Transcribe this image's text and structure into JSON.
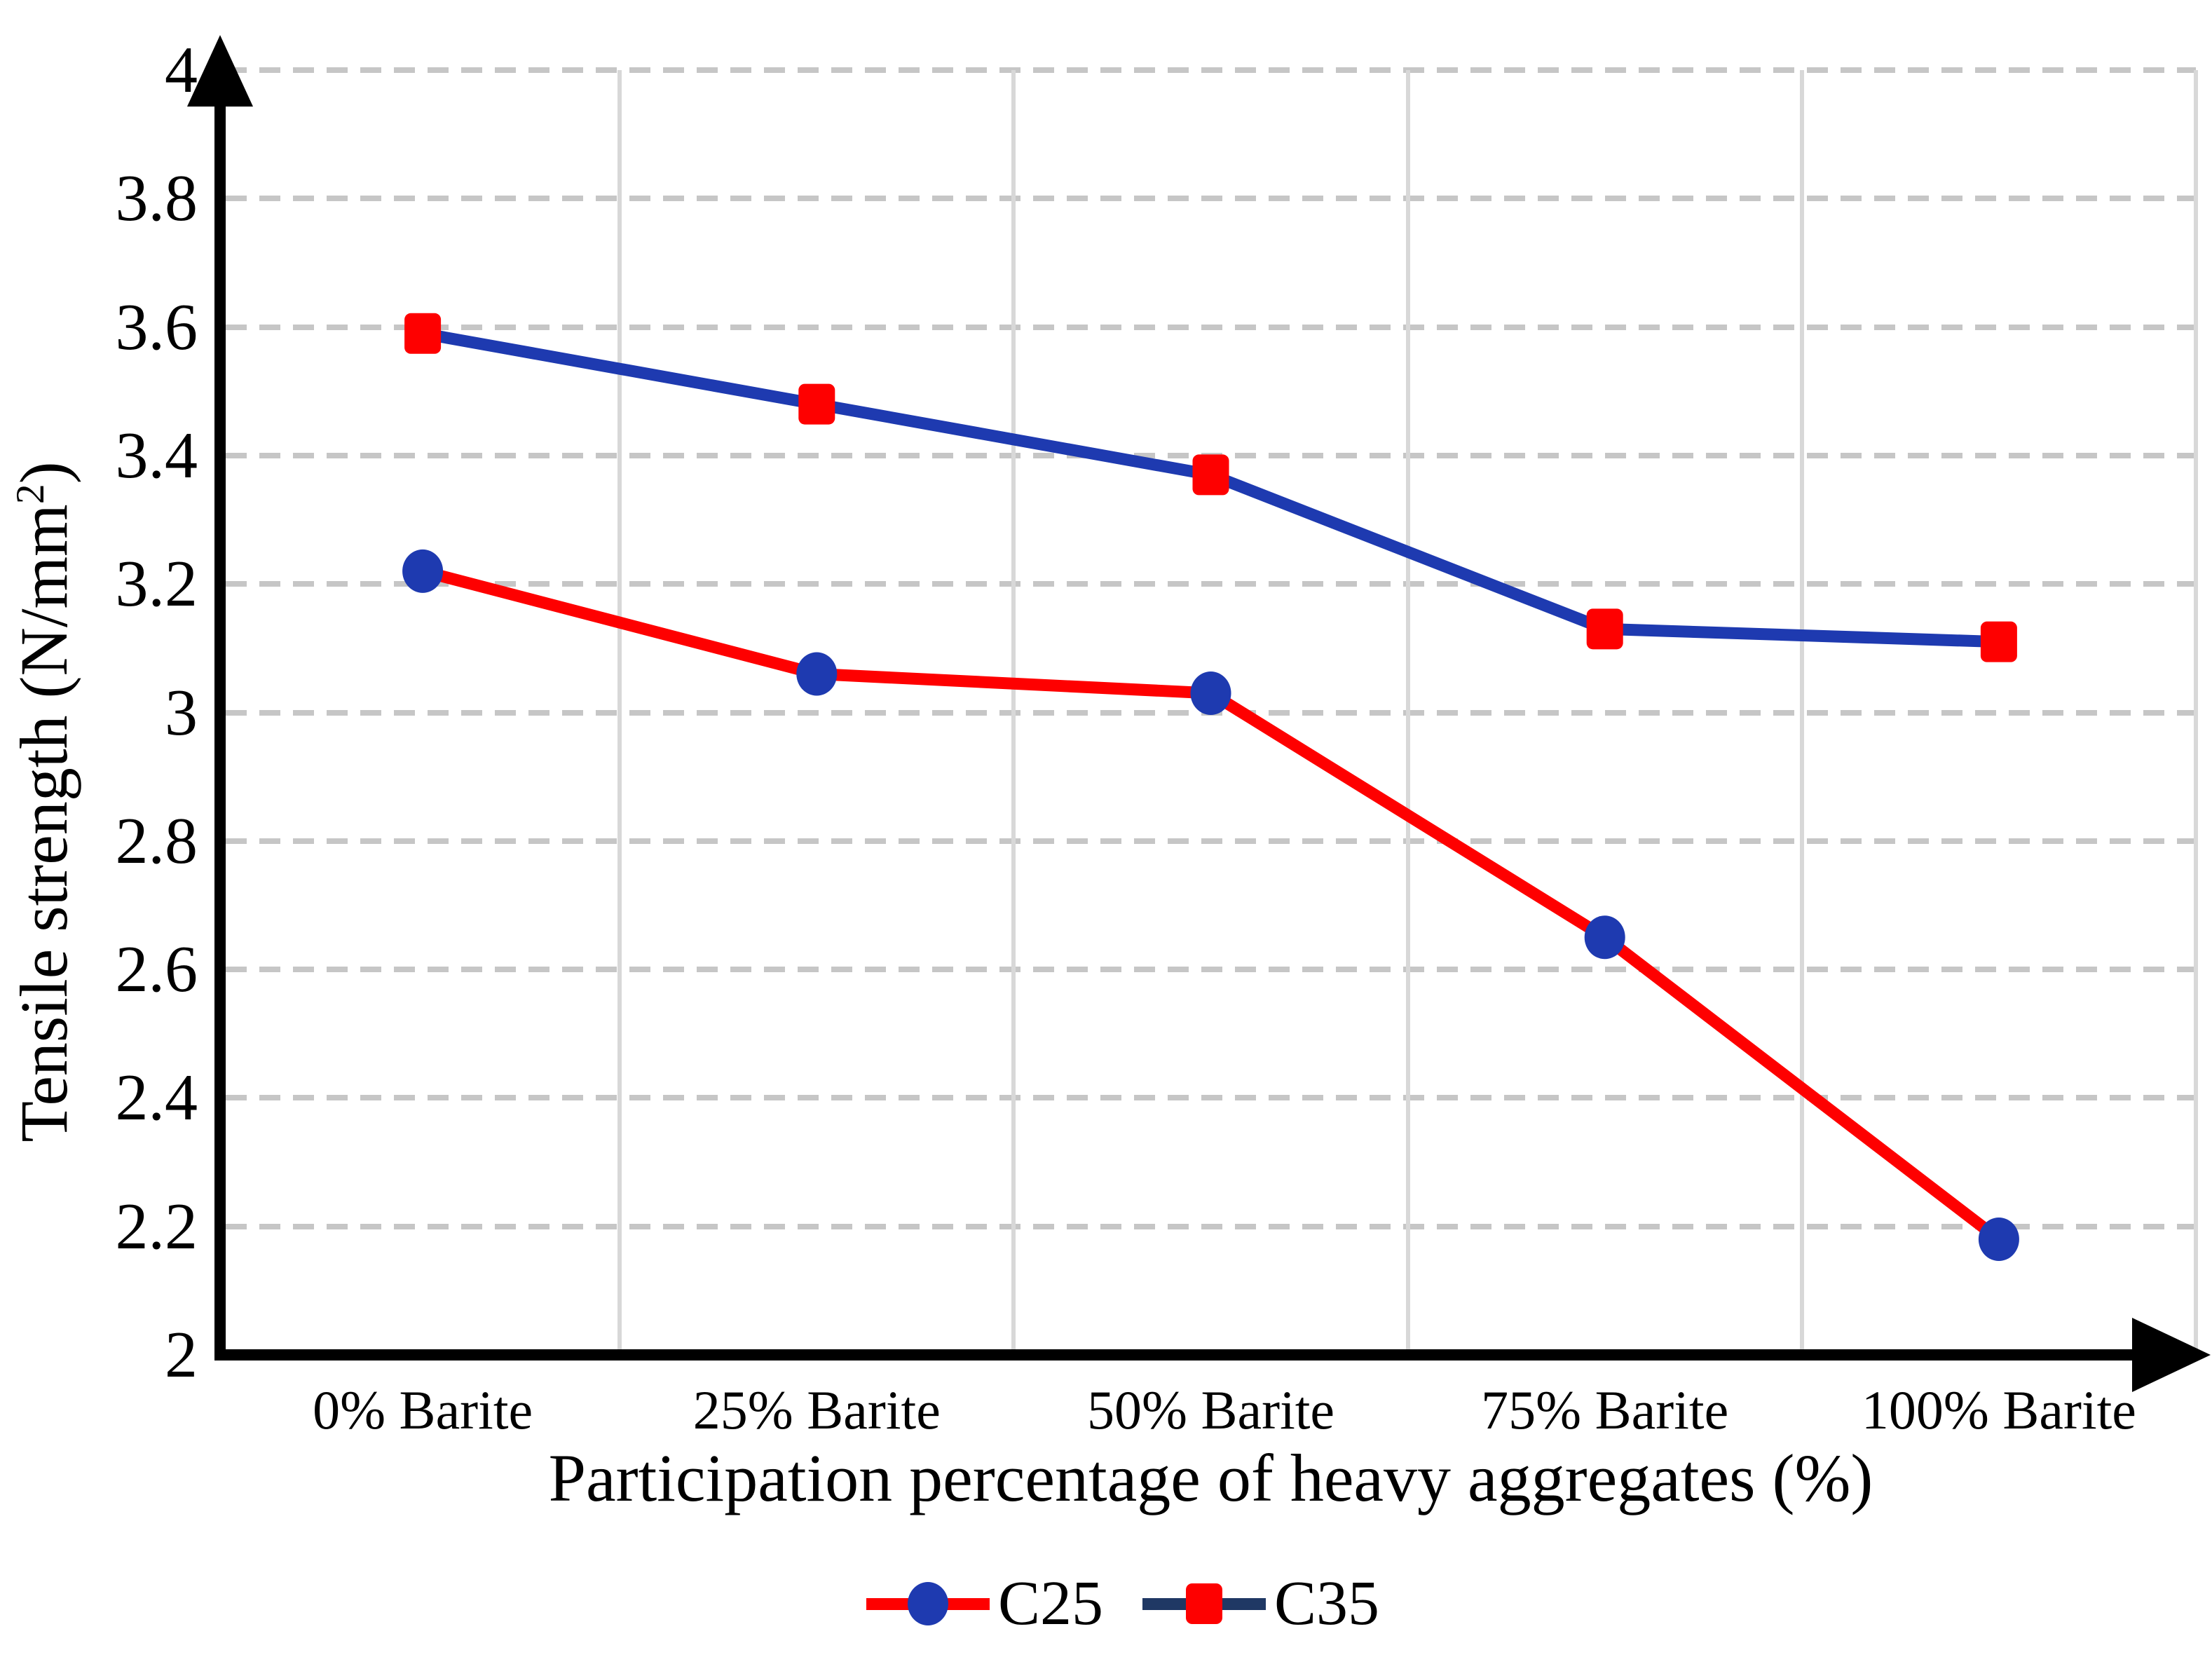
{
  "chart_data": {
    "type": "line",
    "title": "",
    "categories": [
      "0% Barite",
      "25% Barite",
      "50% Barite",
      "75% Barite",
      "100% Barite"
    ],
    "series": [
      {
        "name": "C25",
        "values": [
          3.22,
          3.06,
          3.03,
          2.65,
          2.18
        ],
        "line_color": "#FE0000",
        "marker": "circle",
        "marker_color": "#1E3AB0",
        "legend_line_color": "#FE0000"
      },
      {
        "name": "C35",
        "values": [
          3.59,
          3.48,
          3.37,
          3.13,
          3.11
        ],
        "line_color": "#1E3AB0",
        "marker": "square",
        "marker_color": "#FE0000",
        "legend_line_color": "#1F3864"
      }
    ],
    "xlabel": "Participation percentage of heavy aggregates (%)",
    "ylabel": "Tensile strength (N/mm²)",
    "ylim": [
      2,
      4
    ],
    "ytick_step": 0.2,
    "ytick_labels": [
      "2",
      "2.2",
      "2.4",
      "2.6",
      "2.8",
      "3",
      "3.2",
      "3.4",
      "3.6",
      "3.8",
      "4"
    ],
    "grid": {
      "horizontal": "dashed",
      "vertical": "solid"
    },
    "legend_position": "bottom-center",
    "axis_arrows": [
      "y-up",
      "x-right"
    ]
  },
  "colors": {
    "background": "#FFFFFF",
    "text": "#000000",
    "axis": "#000000",
    "grid_dashed": "#C6C6C6",
    "grid_solid": "#D8D8D8"
  }
}
